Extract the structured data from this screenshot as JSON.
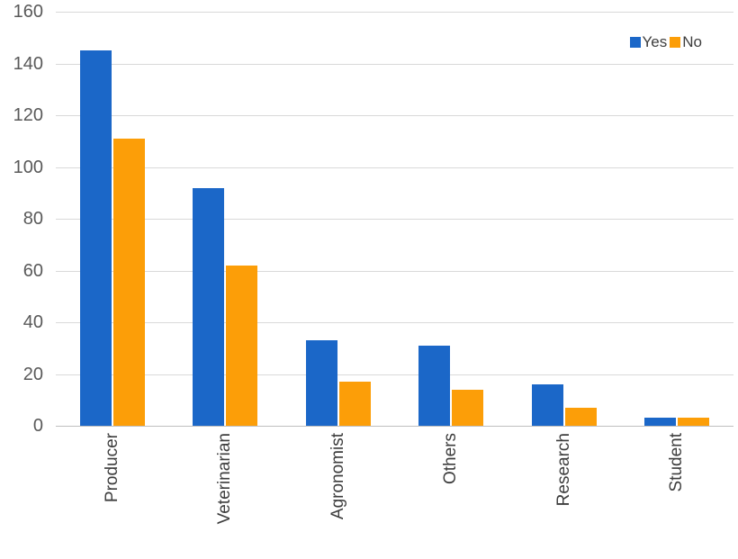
{
  "chart_data": {
    "type": "bar",
    "title": "",
    "xlabel": "",
    "ylabel": "",
    "categories": [
      "Producer",
      "Veterinarian",
      "Agronomist",
      "Others",
      "Research",
      "Student"
    ],
    "series": [
      {
        "name": "Yes",
        "color": "#1B67C8",
        "values": [
          145,
          92,
          33,
          31,
          16,
          3
        ]
      },
      {
        "name": "No",
        "color": "#FC9E08",
        "values": [
          111,
          62,
          17,
          14,
          7,
          3
        ]
      }
    ],
    "ylim": [
      0,
      160
    ],
    "yticks": [
      "0",
      "20",
      "40",
      "60",
      "80",
      "100",
      "120",
      "140",
      "160"
    ],
    "grid": true,
    "legend_position": "top-right",
    "x_label_rotation": -90
  },
  "colors": {
    "background": "#FFFFFF",
    "gridline": "#D9D9D9",
    "zero_line": "#BFBFBF",
    "tick_text": "#595959",
    "category_text": "#3D3D3D",
    "legend_text": "#3D3D3D"
  }
}
